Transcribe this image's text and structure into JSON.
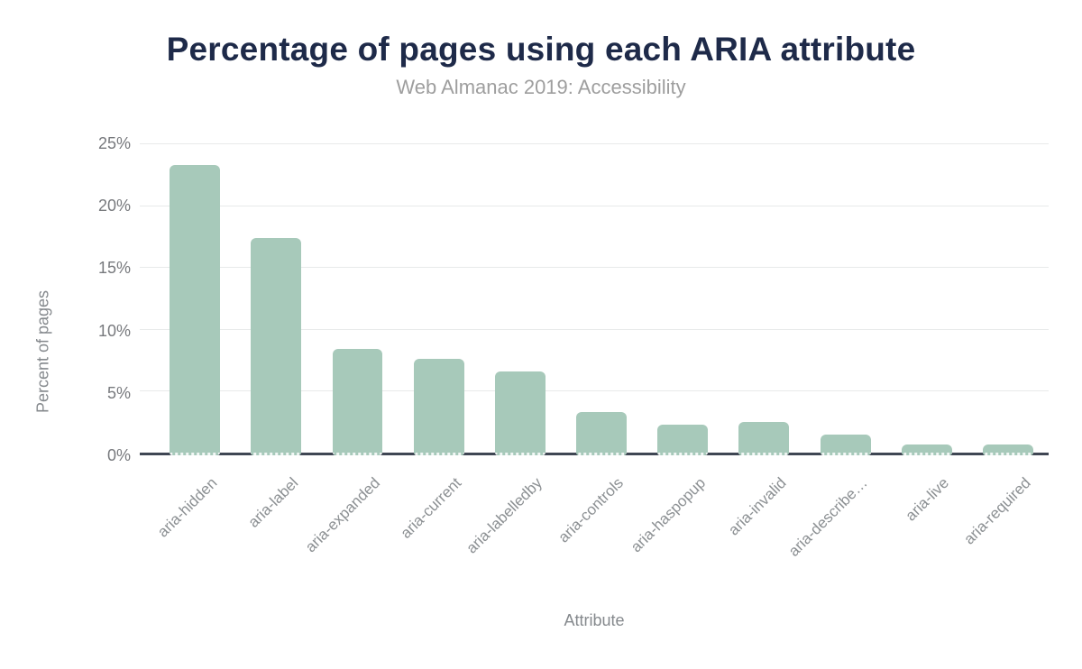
{
  "chart_data": {
    "type": "bar",
    "title": "Percentage of pages using each ARIA attribute",
    "subtitle": "Web Almanac 2019: Accessibility",
    "xlabel": "Attribute",
    "ylabel": "Percent of pages",
    "categories": [
      "aria-hidden",
      "aria-label",
      "aria-expanded",
      "aria-current",
      "aria-labelledby",
      "aria-controls",
      "aria-haspopup",
      "aria-invalid",
      "aria-describe…",
      "aria-live",
      "aria-required"
    ],
    "values": [
      23.5,
      17.6,
      8.6,
      7.8,
      6.8,
      3.5,
      2.5,
      2.7,
      1.7,
      0.9,
      0.9
    ],
    "ylim": [
      0,
      25
    ],
    "yticks": [
      0,
      5,
      10,
      15,
      20,
      25
    ],
    "ytick_labels": [
      "0%",
      "5%",
      "10%",
      "15%",
      "20%",
      "25%"
    ],
    "grid": true,
    "legend": false,
    "bar_color": "#a7c9ba",
    "colors": {
      "title": "#1e2a49",
      "subtitle": "#9e9e9e",
      "axis_text": "#85898d",
      "tick_text": "#77797d",
      "category_text": "#8c9093",
      "grid_line": "#e8eaea",
      "axis_line": "#3f4653",
      "background": "#ffffff"
    }
  }
}
